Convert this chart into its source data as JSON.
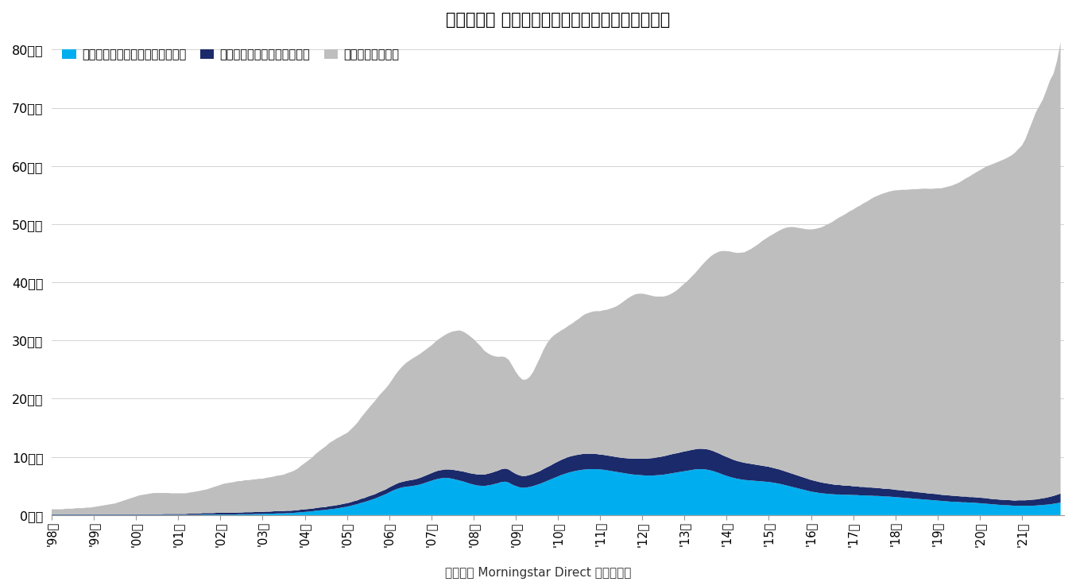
{
  "title": "》図表５》 外国債券ファンドの純資産残高の推移",
  "title_full": "【図表５】 外国債券ファンドの純資産残高の推移",
  "caption": "（資料） Morningstar Direct より作成。",
  "legend_labels": [
    "外国債券ファンド（毎月分配型）",
    "外国債券ファンド（その他）",
    "その他のファンド"
  ],
  "colors": [
    "#00AEEF",
    "#1B2A6B",
    "#BEBEBE"
  ],
  "yticks": [
    0,
    10,
    20,
    30,
    40,
    50,
    60,
    70,
    80
  ],
  "ytick_labels": [
    "0兆円",
    "10兆円",
    "20兆円",
    "30兆円",
    "40兆円",
    "50兆円",
    "60兆円",
    "70兆円",
    "80兆円"
  ],
  "ylim": [
    0,
    82
  ],
  "background_color": "#FFFFFF",
  "xtick_labels": [
    "'98年",
    "'99年",
    "'00年",
    "'01年",
    "'02年",
    "'03年",
    "'04年",
    "'05年",
    "'06年",
    "'07年",
    "'08年",
    "'09年",
    "'10年",
    "'11年",
    "'12年",
    "'13年",
    "'14年",
    "'15年",
    "'16年",
    "'17年",
    "'18年",
    "'19年",
    "'20年",
    "'21年"
  ],
  "cyan_data": [
    0.05,
    0.05,
    0.05,
    0.05,
    0.05,
    0.05,
    0.05,
    0.05,
    0.05,
    0.05,
    0.05,
    0.05,
    0.05,
    0.05,
    0.05,
    0.05,
    0.05,
    0.05,
    0.05,
    0.05,
    0.05,
    0.05,
    0.05,
    0.05,
    0.05,
    0.05,
    0.05,
    0.05,
    0.05,
    0.05,
    0.05,
    0.05,
    0.05,
    0.05,
    0.05,
    0.05,
    0.05,
    0.05,
    0.05,
    0.05,
    0.05,
    0.05,
    0.05,
    0.1,
    0.1,
    0.1,
    0.1,
    0.1,
    0.1,
    0.1,
    0.1,
    0.1,
    0.1,
    0.15,
    0.15,
    0.15,
    0.15,
    0.15,
    0.2,
    0.2,
    0.2,
    0.25,
    0.25,
    0.25,
    0.3,
    0.3,
    0.3,
    0.35,
    0.35,
    0.4,
    0.45,
    0.5,
    0.55,
    0.6,
    0.65,
    0.75,
    0.8,
    0.85,
    0.9,
    1.0,
    1.05,
    1.15,
    1.25,
    1.35,
    1.45,
    1.6,
    1.75,
    1.9,
    2.1,
    2.25,
    2.45,
    2.65,
    2.85,
    3.1,
    3.35,
    3.6,
    3.9,
    4.2,
    4.45,
    4.65,
    4.8,
    4.9,
    4.95,
    5.05,
    5.15,
    5.3,
    5.5,
    5.7,
    5.9,
    6.1,
    6.25,
    6.35,
    6.4,
    6.35,
    6.25,
    6.1,
    5.95,
    5.8,
    5.6,
    5.4,
    5.25,
    5.1,
    5.05,
    5.0,
    5.1,
    5.2,
    5.35,
    5.5,
    5.7,
    5.75,
    5.6,
    5.25,
    5.0,
    4.8,
    4.7,
    4.75,
    4.85,
    5.0,
    5.2,
    5.4,
    5.65,
    5.9,
    6.15,
    6.4,
    6.65,
    6.9,
    7.1,
    7.3,
    7.45,
    7.6,
    7.7,
    7.8,
    7.85,
    7.9,
    7.9,
    7.9,
    7.85,
    7.8,
    7.7,
    7.6,
    7.5,
    7.4,
    7.3,
    7.2,
    7.1,
    7.0,
    6.95,
    6.9,
    6.85,
    6.8,
    6.8,
    6.8,
    6.85,
    6.9,
    6.95,
    7.05,
    7.15,
    7.25,
    7.35,
    7.45,
    7.55,
    7.65,
    7.75,
    7.85,
    7.9,
    7.9,
    7.85,
    7.75,
    7.6,
    7.4,
    7.2,
    6.95,
    6.75,
    6.55,
    6.4,
    6.25,
    6.15,
    6.05,
    6.0,
    5.95,
    5.9,
    5.85,
    5.8,
    5.75,
    5.7,
    5.6,
    5.5,
    5.4,
    5.25,
    5.1,
    4.95,
    4.8,
    4.65,
    4.5,
    4.35,
    4.2,
    4.05,
    3.95,
    3.85,
    3.75,
    3.7,
    3.65,
    3.6,
    3.55,
    3.55,
    3.5,
    3.5,
    3.5,
    3.45,
    3.45,
    3.4,
    3.4,
    3.35,
    3.35,
    3.3,
    3.3,
    3.25,
    3.2,
    3.2,
    3.15,
    3.1,
    3.05,
    3.0,
    2.95,
    2.9,
    2.85,
    2.8,
    2.75,
    2.7,
    2.65,
    2.6,
    2.55,
    2.5,
    2.45,
    2.4,
    2.35,
    2.3,
    2.3,
    2.25,
    2.2,
    2.2,
    2.15,
    2.15,
    2.1,
    2.05,
    2.0,
    1.95,
    1.9,
    1.85,
    1.8,
    1.75,
    1.7,
    1.7,
    1.65,
    1.6,
    1.6,
    1.6,
    1.6,
    1.6,
    1.6,
    1.65,
    1.7,
    1.75,
    1.8,
    1.85,
    1.95,
    2.05,
    2.15
  ],
  "navy_data": [
    0.1,
    0.1,
    0.1,
    0.1,
    0.1,
    0.1,
    0.1,
    0.1,
    0.1,
    0.1,
    0.1,
    0.1,
    0.1,
    0.1,
    0.1,
    0.1,
    0.1,
    0.1,
    0.1,
    0.1,
    0.1,
    0.1,
    0.1,
    0.1,
    0.1,
    0.1,
    0.1,
    0.1,
    0.1,
    0.1,
    0.1,
    0.1,
    0.15,
    0.15,
    0.15,
    0.15,
    0.15,
    0.15,
    0.15,
    0.2,
    0.2,
    0.2,
    0.2,
    0.25,
    0.25,
    0.25,
    0.25,
    0.3,
    0.3,
    0.3,
    0.3,
    0.3,
    0.3,
    0.3,
    0.3,
    0.35,
    0.35,
    0.35,
    0.35,
    0.35,
    0.35,
    0.35,
    0.35,
    0.4,
    0.4,
    0.4,
    0.4,
    0.4,
    0.4,
    0.4,
    0.4,
    0.45,
    0.45,
    0.45,
    0.45,
    0.45,
    0.5,
    0.5,
    0.5,
    0.55,
    0.55,
    0.55,
    0.55,
    0.6,
    0.6,
    0.6,
    0.65,
    0.65,
    0.7,
    0.7,
    0.75,
    0.75,
    0.75,
    0.8,
    0.8,
    0.8,
    0.85,
    0.85,
    0.9,
    0.95,
    0.95,
    1.0,
    1.05,
    1.05,
    1.1,
    1.15,
    1.2,
    1.25,
    1.3,
    1.35,
    1.4,
    1.4,
    1.45,
    1.5,
    1.55,
    1.6,
    1.65,
    1.7,
    1.75,
    1.8,
    1.85,
    1.9,
    1.95,
    1.95,
    2.0,
    2.05,
    2.1,
    2.15,
    2.2,
    2.25,
    2.25,
    2.2,
    2.1,
    2.05,
    2.0,
    2.0,
    2.05,
    2.1,
    2.15,
    2.2,
    2.3,
    2.35,
    2.4,
    2.5,
    2.55,
    2.6,
    2.65,
    2.7,
    2.7,
    2.7,
    2.7,
    2.7,
    2.7,
    2.65,
    2.65,
    2.6,
    2.55,
    2.55,
    2.55,
    2.55,
    2.55,
    2.55,
    2.55,
    2.6,
    2.65,
    2.7,
    2.75,
    2.8,
    2.85,
    2.9,
    2.95,
    3.0,
    3.05,
    3.1,
    3.15,
    3.2,
    3.25,
    3.3,
    3.3,
    3.35,
    3.4,
    3.4,
    3.45,
    3.45,
    3.5,
    3.5,
    3.5,
    3.5,
    3.45,
    3.4,
    3.35,
    3.3,
    3.25,
    3.2,
    3.1,
    3.05,
    3.0,
    2.95,
    2.9,
    2.85,
    2.8,
    2.75,
    2.7,
    2.65,
    2.6,
    2.55,
    2.5,
    2.45,
    2.4,
    2.35,
    2.3,
    2.25,
    2.2,
    2.15,
    2.1,
    2.05,
    2.0,
    1.95,
    1.9,
    1.85,
    1.8,
    1.75,
    1.7,
    1.65,
    1.65,
    1.6,
    1.55,
    1.55,
    1.5,
    1.5,
    1.45,
    1.45,
    1.4,
    1.4,
    1.4,
    1.35,
    1.35,
    1.3,
    1.3,
    1.3,
    1.25,
    1.25,
    1.25,
    1.2,
    1.2,
    1.2,
    1.15,
    1.15,
    1.15,
    1.1,
    1.1,
    1.1,
    1.1,
    1.05,
    1.05,
    1.05,
    1.05,
    1.0,
    1.0,
    1.0,
    1.0,
    0.95,
    0.95,
    0.95,
    0.95,
    0.95,
    0.95,
    0.9,
    0.9,
    0.9,
    0.9,
    0.9,
    0.9,
    0.9,
    0.9,
    0.95,
    0.95,
    0.95,
    1.0,
    1.05,
    1.05,
    1.1,
    1.15,
    1.2,
    1.3,
    1.35,
    1.45,
    1.55
  ],
  "gray_data": [
    0.85,
    0.85,
    0.85,
    0.85,
    0.95,
    0.95,
    0.95,
    1.05,
    1.05,
    1.05,
    1.15,
    1.15,
    1.25,
    1.35,
    1.45,
    1.55,
    1.65,
    1.75,
    1.85,
    2.05,
    2.25,
    2.45,
    2.65,
    2.85,
    3.05,
    3.25,
    3.35,
    3.45,
    3.55,
    3.65,
    3.65,
    3.65,
    3.6,
    3.6,
    3.55,
    3.55,
    3.55,
    3.55,
    3.55,
    3.6,
    3.7,
    3.8,
    3.9,
    3.95,
    4.05,
    4.25,
    4.45,
    4.6,
    4.8,
    5.0,
    5.1,
    5.2,
    5.3,
    5.4,
    5.4,
    5.5,
    5.5,
    5.6,
    5.6,
    5.7,
    5.7,
    5.8,
    5.9,
    5.95,
    6.05,
    6.15,
    6.25,
    6.45,
    6.65,
    6.85,
    7.15,
    7.55,
    7.95,
    8.35,
    8.75,
    9.25,
    9.65,
    10.05,
    10.45,
    10.85,
    11.15,
    11.45,
    11.65,
    11.85,
    12.05,
    12.45,
    12.85,
    13.35,
    13.95,
    14.55,
    15.05,
    15.55,
    16.05,
    16.55,
    16.95,
    17.35,
    17.75,
    18.35,
    18.95,
    19.45,
    19.95,
    20.35,
    20.65,
    20.95,
    21.15,
    21.35,
    21.55,
    21.75,
    21.95,
    22.25,
    22.55,
    22.85,
    23.15,
    23.45,
    23.75,
    23.95,
    24.15,
    24.05,
    23.85,
    23.55,
    23.15,
    22.65,
    22.05,
    21.35,
    20.75,
    20.25,
    19.85,
    19.55,
    19.35,
    19.15,
    18.85,
    18.25,
    17.55,
    16.95,
    16.55,
    16.55,
    16.85,
    17.55,
    18.55,
    19.55,
    20.55,
    21.35,
    21.85,
    22.05,
    22.15,
    22.25,
    22.35,
    22.55,
    22.75,
    23.05,
    23.35,
    23.75,
    24.05,
    24.25,
    24.45,
    24.55,
    24.65,
    24.85,
    25.05,
    25.35,
    25.65,
    26.05,
    26.55,
    27.05,
    27.55,
    27.95,
    28.25,
    28.35,
    28.35,
    28.25,
    28.05,
    27.85,
    27.65,
    27.55,
    27.45,
    27.45,
    27.55,
    27.75,
    28.05,
    28.45,
    28.85,
    29.25,
    29.75,
    30.25,
    30.85,
    31.55,
    32.25,
    32.95,
    33.65,
    34.25,
    34.75,
    35.15,
    35.35,
    35.55,
    35.65,
    35.75,
    35.95,
    36.15,
    36.55,
    36.95,
    37.45,
    37.95,
    38.55,
    39.05,
    39.55,
    40.05,
    40.55,
    41.05,
    41.55,
    41.95,
    42.25,
    42.45,
    42.55,
    42.65,
    42.75,
    42.85,
    43.05,
    43.25,
    43.55,
    43.85,
    44.25,
    44.65,
    45.05,
    45.55,
    45.95,
    46.35,
    46.75,
    47.15,
    47.55,
    47.95,
    48.35,
    48.75,
    49.15,
    49.55,
    49.95,
    50.25,
    50.55,
    50.85,
    51.05,
    51.25,
    51.45,
    51.55,
    51.65,
    51.75,
    51.85,
    51.95,
    52.05,
    52.15,
    52.25,
    52.35,
    52.35,
    52.45,
    52.55,
    52.65,
    52.85,
    53.05,
    53.25,
    53.55,
    53.85,
    54.25,
    54.65,
    55.05,
    55.45,
    55.85,
    56.25,
    56.65,
    57.05,
    57.35,
    57.65,
    57.95,
    58.25,
    58.55,
    58.85,
    59.25,
    59.75,
    60.35,
    60.95,
    62.05,
    63.55,
    65.05,
    66.55,
    67.55,
    68.55,
    70.05,
    71.55,
    72.55,
    74.55,
    77.55
  ]
}
